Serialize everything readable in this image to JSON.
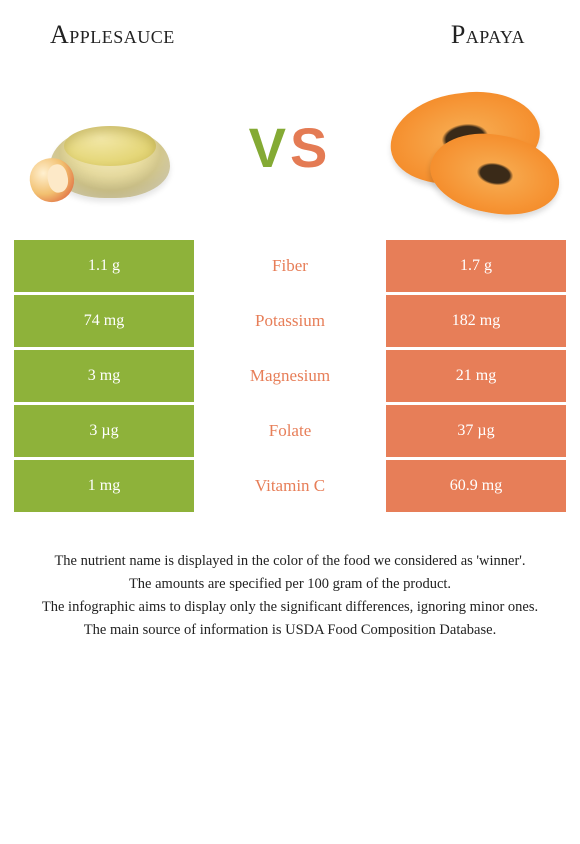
{
  "colors": {
    "left": "#8eb23a",
    "right": "#e77e58",
    "mid_text_winner_left": "#8eb23a",
    "mid_text_winner_right": "#e77e58",
    "background": "#ffffff"
  },
  "header": {
    "left_title": "Applesauce",
    "right_title": "Papaya"
  },
  "vs": {
    "v": "V",
    "s": "S"
  },
  "table": {
    "rows": [
      {
        "left": "1.1 g",
        "label": "Fiber",
        "right": "1.7 g",
        "winner": "right"
      },
      {
        "left": "74 mg",
        "label": "Potassium",
        "right": "182 mg",
        "winner": "right"
      },
      {
        "left": "3 mg",
        "label": "Magnesium",
        "right": "21 mg",
        "winner": "right"
      },
      {
        "left": "3 µg",
        "label": "Folate",
        "right": "37 µg",
        "winner": "right"
      },
      {
        "left": "1 mg",
        "label": "Vitamin C",
        "right": "60.9 mg",
        "winner": "right"
      }
    ]
  },
  "footnotes": [
    "The nutrient name is displayed in the color of the food we considered as 'winner'.",
    "The amounts are specified per 100 gram of the product.",
    "The infographic aims to display only the significant differences, ignoring minor ones.",
    "The main source of information is USDA Food Composition Database."
  ]
}
